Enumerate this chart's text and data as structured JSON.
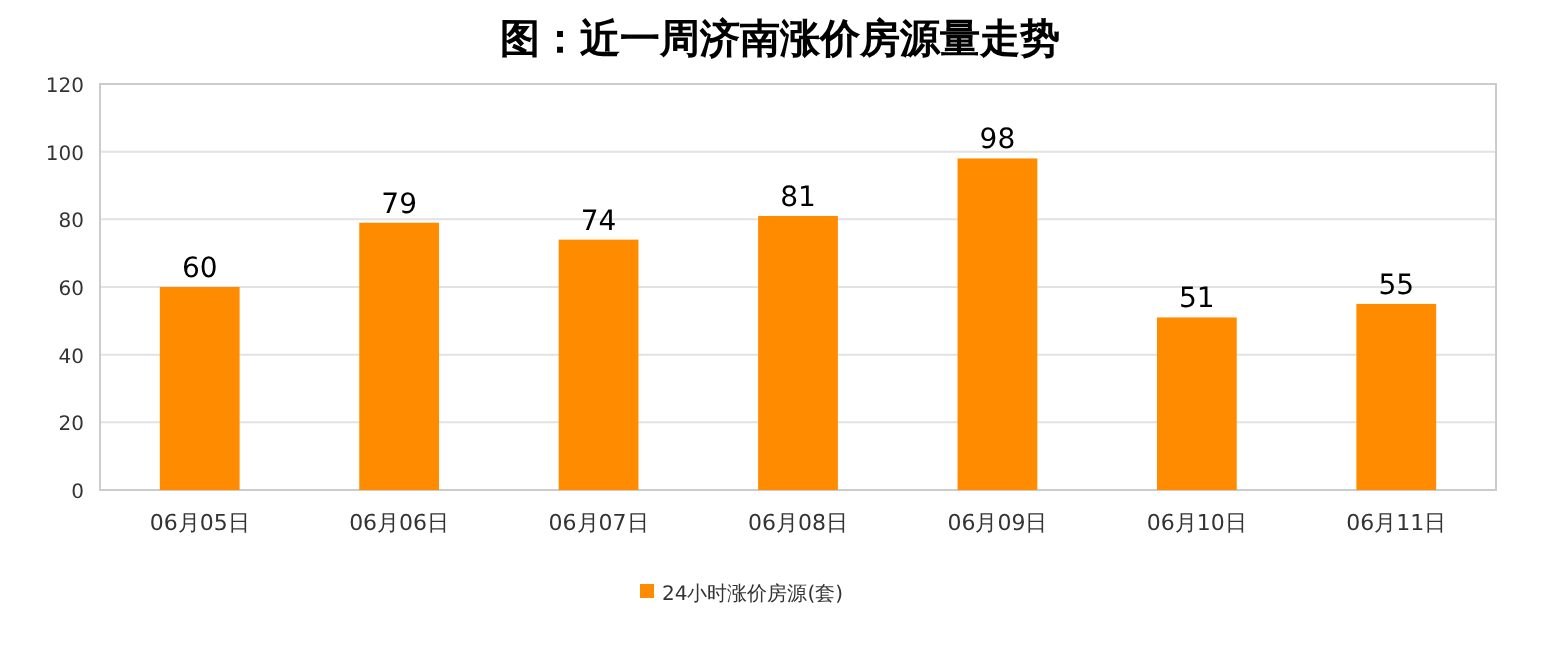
{
  "chart_data": {
    "type": "bar",
    "title": "图：近一周济南涨价房源量走势",
    "categories": [
      "06月05日",
      "06月06日",
      "06月07日",
      "06月08日",
      "06月09日",
      "06月10日",
      "06月11日"
    ],
    "series": [
      {
        "name": "24小时涨价房源(套)",
        "color": "#ff8c00",
        "values": [
          60,
          79,
          74,
          81,
          98,
          51,
          55
        ]
      }
    ],
    "ylim": [
      0,
      120
    ],
    "yticks": [
      0,
      20,
      40,
      60,
      80,
      100,
      120
    ],
    "grid": "y",
    "legend": "bottom",
    "data_labels": true
  }
}
